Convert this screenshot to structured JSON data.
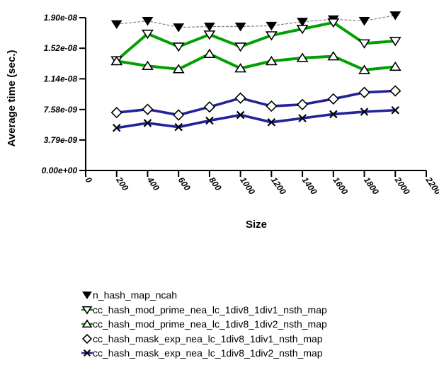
{
  "chart_data": {
    "type": "line",
    "title": "",
    "xlabel": "Size",
    "ylabel": "Average time (sec.)",
    "xlim": [
      0,
      2200
    ],
    "ylim": [
      0,
      1.9e-08
    ],
    "grid": false,
    "legend_position": "bottom-left",
    "x_ticks": [
      {
        "label": "0",
        "value": 0
      },
      {
        "label": "200",
        "value": 200
      },
      {
        "label": "400",
        "value": 400
      },
      {
        "label": "600",
        "value": 600
      },
      {
        "label": "800",
        "value": 800
      },
      {
        "label": "1000",
        "value": 1000
      },
      {
        "label": "1200",
        "value": 1200
      },
      {
        "label": "1400",
        "value": 1400
      },
      {
        "label": "1600",
        "value": 1600
      },
      {
        "label": "1800",
        "value": 1800
      },
      {
        "label": "2000",
        "value": 2000
      },
      {
        "label": "2200",
        "value": 2200
      }
    ],
    "y_ticks": [
      {
        "label": "0.00e+00",
        "value": 0
      },
      {
        "label": "3.79e-09",
        "value": 3.79e-09
      },
      {
        "label": "7.58e-09",
        "value": 7.58e-09
      },
      {
        "label": "1.14e-08",
        "value": 1.14e-08
      },
      {
        "label": "1.52e-08",
        "value": 1.52e-08
      },
      {
        "label": "1.90e-08",
        "value": 1.9e-08
      }
    ],
    "x": [
      200,
      400,
      600,
      800,
      1000,
      1200,
      1400,
      1600,
      1800,
      2000
    ],
    "series": [
      {
        "name": "n_hash_map_ncah",
        "marker": "triangle-down-filled",
        "marker_color": "#000000",
        "line_color": "#808080",
        "line_style": "dotted",
        "line_width": 1.2,
        "legend_line": false,
        "values": [
          1.82e-08,
          1.86e-08,
          1.78e-08,
          1.79e-08,
          1.79e-08,
          1.8e-08,
          1.85e-08,
          1.88e-08,
          1.86e-08,
          1.93e-08
        ]
      },
      {
        "name": "cc_hash_mod_prime_nea_lc_1div8_1div1_nsth_map",
        "marker": "triangle-down-open",
        "marker_color": "#000000",
        "line_color": "#00a000",
        "line_style": "solid",
        "line_width": 4,
        "legend_line": true,
        "values": [
          1.37e-08,
          1.7e-08,
          1.54e-08,
          1.69e-08,
          1.54e-08,
          1.68e-08,
          1.76e-08,
          1.84e-08,
          1.58e-08,
          1.61e-08
        ]
      },
      {
        "name": "cc_hash_mod_prime_nea_lc_1div8_1div2_nsth_map",
        "marker": "triangle-up-open",
        "marker_color": "#000000",
        "line_color": "#00a000",
        "line_style": "solid",
        "line_width": 4,
        "legend_line": true,
        "values": [
          1.36e-08,
          1.3e-08,
          1.26e-08,
          1.45e-08,
          1.27e-08,
          1.36e-08,
          1.4e-08,
          1.42e-08,
          1.25e-08,
          1.29e-08
        ]
      },
      {
        "name": "cc_hash_mask_exp_nea_lc_1div8_1div1_nsth_map",
        "marker": "diamond-open",
        "marker_color": "#000000",
        "line_color": "#22229a",
        "line_style": "solid",
        "line_width": 3.6,
        "legend_line": false,
        "values": [
          7.2e-09,
          7.6e-09,
          6.9e-09,
          7.9e-09,
          9e-09,
          8e-09,
          8.2e-09,
          8.9e-09,
          9.7e-09,
          9.9e-09
        ]
      },
      {
        "name": "cc_hash_mask_exp_nea_lc_1div8_1div2_nsth_map",
        "marker": "x",
        "marker_color": "#000000",
        "line_color": "#22229a",
        "line_style": "solid",
        "line_width": 3.6,
        "legend_line": true,
        "values": [
          5.3e-09,
          5.9e-09,
          5.4e-09,
          6.2e-09,
          6.9e-09,
          6e-09,
          6.5e-09,
          7e-09,
          7.3e-09,
          7.5e-09
        ]
      }
    ]
  }
}
